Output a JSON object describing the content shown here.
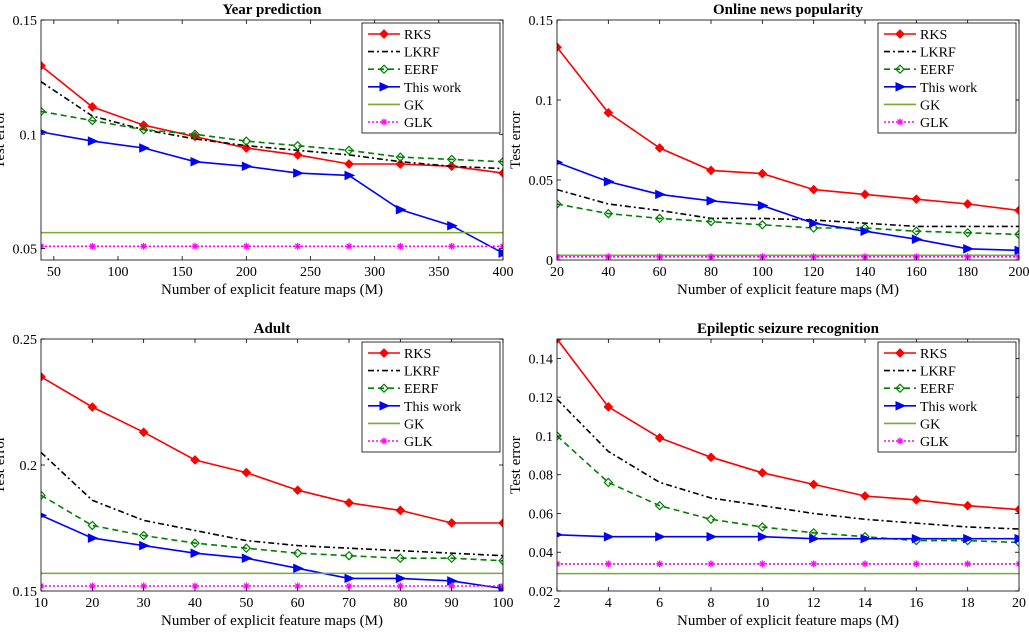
{
  "chart_data": [
    {
      "type": "line",
      "title": "Year prediction",
      "xlabel": "Number of explicit feature maps (M)",
      "ylabel": "Test error",
      "xlim": [
        40,
        400
      ],
      "ylim": [
        0.045,
        0.15
      ],
      "xticks": [
        50,
        100,
        150,
        200,
        250,
        300,
        350,
        400
      ],
      "yticks": [
        0.05,
        0.1,
        0.15
      ],
      "ytick_labels": [
        "0.05",
        "0.1",
        "0.15"
      ],
      "legend_position": "top-right",
      "x": [
        40,
        80,
        120,
        160,
        200,
        240,
        280,
        320,
        360,
        400
      ],
      "series": [
        {
          "name": "RKS",
          "values": [
            0.13,
            0.112,
            0.104,
            0.099,
            0.094,
            0.091,
            0.087,
            0.087,
            0.086,
            0.083
          ]
        },
        {
          "name": "LKRF",
          "values": [
            0.123,
            0.108,
            0.102,
            0.098,
            0.095,
            0.093,
            0.091,
            0.088,
            0.086,
            0.085
          ]
        },
        {
          "name": "EERF",
          "values": [
            0.11,
            0.106,
            0.102,
            0.1,
            0.097,
            0.095,
            0.093,
            0.09,
            0.089,
            0.088
          ]
        },
        {
          "name": "This work",
          "values": [
            0.101,
            0.097,
            0.094,
            0.088,
            0.086,
            0.083,
            0.082,
            0.067,
            0.06,
            0.048
          ]
        },
        {
          "name": "GK",
          "values": [
            0.057,
            0.057,
            0.057,
            0.057,
            0.057,
            0.057,
            0.057,
            0.057,
            0.057,
            0.057
          ]
        },
        {
          "name": "GLK",
          "values": [
            0.051,
            0.051,
            0.051,
            0.051,
            0.051,
            0.051,
            0.051,
            0.051,
            0.051,
            0.051
          ]
        }
      ]
    },
    {
      "type": "line",
      "title": "Online news popularity",
      "xlabel": "Number of explicit feature maps (M)",
      "ylabel": "Test error",
      "xlim": [
        20,
        200
      ],
      "ylim": [
        0,
        0.15
      ],
      "xticks": [
        20,
        40,
        60,
        80,
        100,
        120,
        140,
        160,
        180,
        200
      ],
      "yticks": [
        0,
        0.05,
        0.1,
        0.15
      ],
      "ytick_labels": [
        "0",
        "0.05",
        "0.1",
        "0.15"
      ],
      "legend_position": "top-right",
      "x": [
        20,
        40,
        60,
        80,
        100,
        120,
        140,
        160,
        180,
        200
      ],
      "series": [
        {
          "name": "RKS",
          "values": [
            0.133,
            0.092,
            0.07,
            0.056,
            0.054,
            0.044,
            0.041,
            0.038,
            0.035,
            0.031
          ]
        },
        {
          "name": "LKRF",
          "values": [
            0.044,
            0.035,
            0.031,
            0.026,
            0.026,
            0.025,
            0.023,
            0.021,
            0.021,
            0.021
          ]
        },
        {
          "name": "EERF",
          "values": [
            0.035,
            0.029,
            0.026,
            0.024,
            0.022,
            0.02,
            0.02,
            0.018,
            0.017,
            0.016
          ]
        },
        {
          "name": "This work",
          "values": [
            0.061,
            0.049,
            0.041,
            0.037,
            0.034,
            0.023,
            0.018,
            0.013,
            0.007,
            0.006
          ]
        },
        {
          "name": "GK",
          "values": [
            0.003,
            0.003,
            0.003,
            0.003,
            0.003,
            0.003,
            0.003,
            0.003,
            0.003,
            0.003
          ]
        },
        {
          "name": "GLK",
          "values": [
            0.002,
            0.002,
            0.002,
            0.002,
            0.002,
            0.002,
            0.002,
            0.002,
            0.002,
            0.002
          ]
        }
      ]
    },
    {
      "type": "line",
      "title": "Adult",
      "xlabel": "Number of explicit feature maps (M)",
      "ylabel": "Test error",
      "xlim": [
        10,
        100
      ],
      "ylim": [
        0.15,
        0.25
      ],
      "xticks": [
        10,
        20,
        30,
        40,
        50,
        60,
        70,
        80,
        90,
        100
      ],
      "yticks": [
        0.15,
        0.2,
        0.25
      ],
      "ytick_labels": [
        "0.15",
        "0.2",
        "0.25"
      ],
      "legend_position": "top-right",
      "x": [
        10,
        20,
        30,
        40,
        50,
        60,
        70,
        80,
        90,
        100
      ],
      "series": [
        {
          "name": "RKS",
          "values": [
            0.235,
            0.223,
            0.213,
            0.202,
            0.197,
            0.19,
            0.185,
            0.182,
            0.177,
            0.177
          ]
        },
        {
          "name": "LKRF",
          "values": [
            0.205,
            0.186,
            0.178,
            0.174,
            0.17,
            0.168,
            0.167,
            0.166,
            0.165,
            0.164
          ]
        },
        {
          "name": "EERF",
          "values": [
            0.188,
            0.176,
            0.172,
            0.169,
            0.167,
            0.165,
            0.164,
            0.163,
            0.163,
            0.162
          ]
        },
        {
          "name": "This work",
          "values": [
            0.18,
            0.171,
            0.168,
            0.165,
            0.163,
            0.159,
            0.155,
            0.155,
            0.154,
            0.151
          ]
        },
        {
          "name": "GK",
          "values": [
            0.157,
            0.157,
            0.157,
            0.157,
            0.157,
            0.157,
            0.157,
            0.157,
            0.157,
            0.157
          ]
        },
        {
          "name": "GLK",
          "values": [
            0.152,
            0.152,
            0.152,
            0.152,
            0.152,
            0.152,
            0.152,
            0.152,
            0.152,
            0.152
          ]
        }
      ]
    },
    {
      "type": "line",
      "title": "Epileptic seizure recognition",
      "xlabel": "Number of explicit feature maps (M)",
      "ylabel": "Test error",
      "xlim": [
        2,
        20
      ],
      "ylim": [
        0.02,
        0.15
      ],
      "xticks": [
        2,
        4,
        6,
        8,
        10,
        12,
        14,
        16,
        18,
        20
      ],
      "yticks": [
        0.02,
        0.04,
        0.06,
        0.08,
        0.1,
        0.12,
        0.14
      ],
      "ytick_labels": [
        "0.02",
        "0.04",
        "0.06",
        "0.08",
        "0.1",
        "0.12",
        "0.14"
      ],
      "legend_position": "top-right",
      "x": [
        2,
        4,
        6,
        8,
        10,
        12,
        14,
        16,
        18,
        20
      ],
      "series": [
        {
          "name": "RKS",
          "values": [
            0.15,
            0.115,
            0.099,
            0.089,
            0.081,
            0.075,
            0.069,
            0.067,
            0.064,
            0.062
          ]
        },
        {
          "name": "LKRF",
          "values": [
            0.119,
            0.092,
            0.076,
            0.068,
            0.064,
            0.06,
            0.057,
            0.055,
            0.053,
            0.052
          ]
        },
        {
          "name": "EERF",
          "values": [
            0.1,
            0.076,
            0.064,
            0.057,
            0.053,
            0.05,
            0.048,
            0.046,
            0.046,
            0.045
          ]
        },
        {
          "name": "This work",
          "values": [
            0.049,
            0.048,
            0.048,
            0.048,
            0.048,
            0.047,
            0.047,
            0.047,
            0.047,
            0.047
          ]
        },
        {
          "name": "GK",
          "values": [
            0.029,
            0.029,
            0.029,
            0.029,
            0.029,
            0.029,
            0.029,
            0.029,
            0.029,
            0.029
          ]
        },
        {
          "name": "GLK",
          "values": [
            0.034,
            0.034,
            0.034,
            0.034,
            0.034,
            0.034,
            0.034,
            0.034,
            0.034,
            0.034
          ]
        }
      ]
    }
  ],
  "series_styles": [
    {
      "name": "RKS",
      "color": "#ff0000",
      "dash": "",
      "marker": "diamond",
      "fill": "#ff0000"
    },
    {
      "name": "LKRF",
      "color": "#000000",
      "dash": "6 3 2 3",
      "marker": "none",
      "fill": "none"
    },
    {
      "name": "EERF",
      "color": "#008000",
      "dash": "6 4",
      "marker": "diamond-open",
      "fill": "none"
    },
    {
      "name": "This work",
      "color": "#0000ff",
      "dash": "",
      "marker": "triangle-right",
      "fill": "#0000ff"
    },
    {
      "name": "GK",
      "color": "#77ac30",
      "dash": "",
      "marker": "none",
      "fill": "none"
    },
    {
      "name": "GLK",
      "color": "#ff00ff",
      "dash": "2 2",
      "marker": "asterisk",
      "fill": "#ff00ff"
    }
  ]
}
